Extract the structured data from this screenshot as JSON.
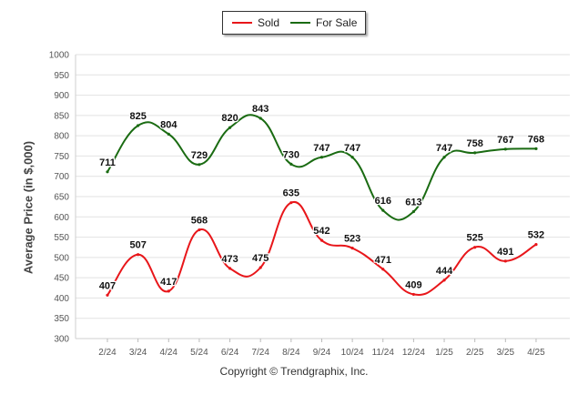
{
  "chart_data": {
    "type": "line",
    "categories": [
      "2/24",
      "3/24",
      "4/24",
      "5/24",
      "6/24",
      "7/24",
      "8/24",
      "9/24",
      "10/24",
      "11/24",
      "12/24",
      "1/25",
      "2/25",
      "3/25",
      "4/25"
    ],
    "series": [
      {
        "name": "Sold",
        "color": "#e8161a",
        "values": [
          407,
          507,
          417,
          568,
          473,
          475,
          635,
          542,
          523,
          471,
          409,
          444,
          525,
          491,
          532
        ]
      },
      {
        "name": "For Sale",
        "color": "#1a6b12",
        "values": [
          711,
          825,
          804,
          729,
          820,
          843,
          730,
          747,
          747,
          616,
          613,
          747,
          758,
          767,
          768
        ]
      }
    ],
    "title": "",
    "xlabel": "",
    "ylabel": "Average Price (in $,000)",
    "ylim": [
      300,
      1000
    ],
    "yticks": [
      300,
      350,
      400,
      450,
      500,
      550,
      600,
      650,
      700,
      750,
      800,
      850,
      900,
      950,
      1000
    ],
    "grid": true,
    "legend_position": "top-center",
    "footer": "Copyright © Trendgraphix, Inc."
  }
}
